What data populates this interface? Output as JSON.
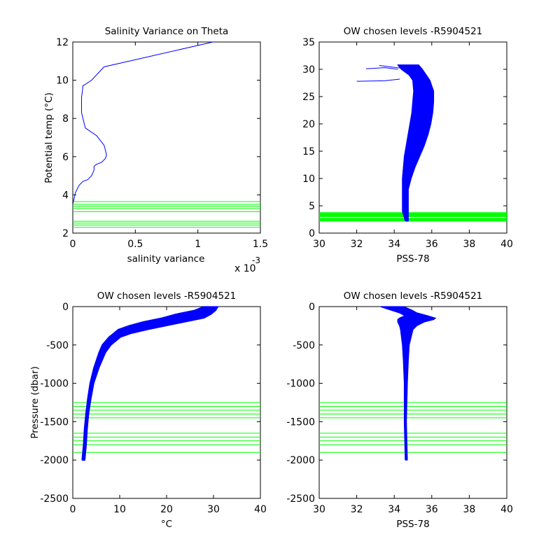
{
  "chart_data": [
    {
      "id": "p1",
      "type": "line",
      "title": "Salinity Variance on Theta",
      "xlabel": "salinity variance",
      "ylabel": "Potential temp (°C)",
      "xlim": [
        0,
        1.5
      ],
      "ylim": [
        2,
        12
      ],
      "xticks": [
        0,
        0.5,
        1,
        1.5
      ],
      "yticks": [
        2,
        4,
        6,
        8,
        10,
        12
      ],
      "x_exponent_label": "x 10",
      "x_exponent_power": "-3",
      "colors": {
        "line": "#0000ff",
        "levels": "#00ff00"
      },
      "series": [
        {
          "x": [
            0,
            0.02,
            0.05,
            0.08,
            0.12,
            0.15,
            0.17,
            0.17,
            0.19,
            0.23,
            0.26,
            0.27,
            0.25,
            0.19,
            0.1,
            0.07,
            0.07,
            0.08,
            0.08,
            0.15,
            0.25,
            1.12
          ],
          "y": [
            3.5,
            4.1,
            4.5,
            4.7,
            4.8,
            5.0,
            5.3,
            5.5,
            5.6,
            5.7,
            5.9,
            6.1,
            6.6,
            7.1,
            7.5,
            8.3,
            9.1,
            9.6,
            9.7,
            10.0,
            10.7,
            12.0
          ]
        }
      ],
      "levels": [
        3.65,
        3.5,
        3.4,
        3.28,
        3.12,
        2.62,
        2.52,
        2.42,
        2.3
      ]
    },
    {
      "id": "p2",
      "type": "line",
      "title": "OW chosen levels -R5904521",
      "xlabel": "PSS-78",
      "ylabel": "",
      "xlim": [
        30,
        40
      ],
      "ylim": [
        0,
        35
      ],
      "xticks": [
        30,
        32,
        34,
        36,
        38,
        40
      ],
      "yticks": [
        0,
        5,
        10,
        15,
        20,
        25,
        30,
        35
      ],
      "colors": {
        "line": "#0000ff",
        "levels": "#00ff00"
      },
      "envelope": {
        "y": [
          2.2,
          4,
          6,
          8,
          10,
          12,
          14,
          16,
          18,
          20,
          22,
          24,
          26,
          28,
          29,
          30,
          30.8
        ],
        "left": [
          34.6,
          34.45,
          34.45,
          34.45,
          34.45,
          34.5,
          34.55,
          34.65,
          34.75,
          34.85,
          34.95,
          35.0,
          35.05,
          35.0,
          34.8,
          34.4,
          34.2
        ],
        "right": [
          34.75,
          34.75,
          34.75,
          34.75,
          34.9,
          35.1,
          35.35,
          35.6,
          35.8,
          35.95,
          36.05,
          36.1,
          36.1,
          35.9,
          35.7,
          35.5,
          35.3
        ]
      },
      "outliers": [
        {
          "x": [
            32.0,
            33.5,
            34.3
          ],
          "y": [
            27.8,
            27.9,
            28.2
          ]
        },
        {
          "x": [
            32.5,
            33.5,
            34.2
          ],
          "y": [
            30.1,
            30.3,
            30.0
          ]
        },
        {
          "x": [
            33.2,
            33.9,
            34.4
          ],
          "y": [
            30.7,
            30.4,
            30.2
          ]
        }
      ],
      "levels": [
        3.65,
        3.5,
        3.4,
        3.28,
        3.12,
        2.62,
        2.52,
        2.42,
        2.3
      ]
    },
    {
      "id": "p3",
      "type": "line",
      "title": "OW chosen levels -R5904521",
      "xlabel": "°C",
      "ylabel": "Pressure (dbar)",
      "xlim": [
        0,
        40
      ],
      "ylim": [
        -2500,
        0
      ],
      "xticks": [
        0,
        10,
        20,
        30,
        40
      ],
      "yticks": [
        -2500,
        -2000,
        -1500,
        -1000,
        -500,
        0
      ],
      "colors": {
        "line": "#0000ff",
        "levels": "#00ff00"
      },
      "envelope": {
        "y": [
          -2000,
          -1800,
          -1600,
          -1400,
          -1200,
          -1000,
          -800,
          -600,
          -500,
          -400,
          -350,
          -300,
          -250,
          -200,
          -150,
          -100,
          -50,
          0
        ],
        "left": [
          2.0,
          2.3,
          2.5,
          2.8,
          3.2,
          3.7,
          4.5,
          5.6,
          6.3,
          7.7,
          8.7,
          9.7,
          12,
          15,
          19,
          22,
          26,
          28
        ],
        "right": [
          2.6,
          2.9,
          3.1,
          3.4,
          3.9,
          4.5,
          5.6,
          7.0,
          8.2,
          10.2,
          12.5,
          16,
          20,
          24,
          28,
          29.5,
          30.5,
          31
        ]
      },
      "tail": {
        "x": [
          2.0,
          2.6
        ],
        "y": [
          -2000,
          -2000
        ]
      },
      "levels": [
        -1250,
        -1300,
        -1350,
        -1400,
        -1450,
        -1650,
        -1700,
        -1750,
        -1800,
        -1900
      ]
    },
    {
      "id": "p4",
      "type": "line",
      "title": "OW chosen levels -R5904521",
      "xlabel": "PSS-78",
      "ylabel": "",
      "xlim": [
        30,
        40
      ],
      "ylim": [
        -2500,
        0
      ],
      "xticks": [
        30,
        32,
        34,
        36,
        38,
        40
      ],
      "yticks": [
        -2500,
        -2000,
        -1500,
        -1000,
        -500,
        0
      ],
      "colors": {
        "line": "#0000ff",
        "levels": "#00ff00"
      },
      "envelope": {
        "y": [
          -2000,
          -1500,
          -1000,
          -700,
          -500,
          -400,
          -300,
          -250,
          -200,
          -170,
          -150,
          -120,
          -80,
          -40,
          0
        ],
        "left": [
          34.6,
          34.55,
          34.55,
          34.5,
          34.45,
          34.4,
          34.35,
          34.3,
          34.2,
          34.2,
          34.3,
          34.6,
          34.3,
          33.8,
          33.3
        ],
        "right": [
          34.7,
          34.65,
          34.7,
          34.75,
          34.8,
          34.9,
          35.0,
          35.2,
          35.6,
          36.1,
          36.2,
          35.8,
          35.2,
          34.9,
          34.5
        ]
      },
      "levels": [
        -1250,
        -1300,
        -1350,
        -1400,
        -1450,
        -1650,
        -1700,
        -1750,
        -1800,
        -1900
      ]
    }
  ]
}
